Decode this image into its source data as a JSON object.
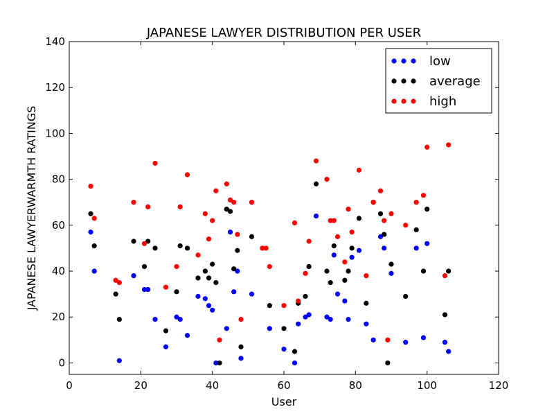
{
  "chart_data": {
    "type": "scatter",
    "title": "JAPANESE LAWYER DISTRIBUTION PER USER",
    "xlabel": "User",
    "ylabel": "JAPANESE LAWYERWARMTH RATINGS",
    "xlim": [
      0,
      120
    ],
    "ylim": [
      -5,
      140
    ],
    "xticks": [
      0,
      20,
      40,
      60,
      80,
      100,
      120
    ],
    "yticks": [
      0,
      20,
      40,
      60,
      80,
      100,
      120,
      140
    ],
    "grid": false,
    "legend_position": "top-right",
    "series": [
      {
        "name": "low",
        "color": "#0000ff",
        "points": [
          [
            6,
            57
          ],
          [
            7,
            40
          ],
          [
            14,
            1
          ],
          [
            18,
            38
          ],
          [
            21,
            32
          ],
          [
            22,
            32
          ],
          [
            24,
            19
          ],
          [
            27,
            7
          ],
          [
            30,
            20
          ],
          [
            31,
            19
          ],
          [
            33,
            12
          ],
          [
            36,
            29
          ],
          [
            38,
            28
          ],
          [
            39,
            25
          ],
          [
            40,
            23
          ],
          [
            41,
            0
          ],
          [
            44,
            15
          ],
          [
            45,
            57
          ],
          [
            46,
            31
          ],
          [
            47,
            40
          ],
          [
            48,
            2
          ],
          [
            51,
            30
          ],
          [
            56,
            15
          ],
          [
            60,
            6
          ],
          [
            63,
            0
          ],
          [
            64,
            17
          ],
          [
            66,
            20
          ],
          [
            67,
            21
          ],
          [
            69,
            64
          ],
          [
            72,
            20
          ],
          [
            73,
            19
          ],
          [
            74,
            47
          ],
          [
            75,
            30
          ],
          [
            77,
            27
          ],
          [
            78,
            19
          ],
          [
            79,
            46
          ],
          [
            81,
            49
          ],
          [
            83,
            17
          ],
          [
            85,
            10
          ],
          [
            87,
            55
          ],
          [
            88,
            50
          ],
          [
            90,
            39
          ],
          [
            94,
            9
          ],
          [
            97,
            50
          ],
          [
            99,
            11
          ],
          [
            100,
            52
          ],
          [
            105,
            9
          ],
          [
            106,
            5
          ]
        ]
      },
      {
        "name": "average",
        "color": "#000000",
        "points": [
          [
            6,
            65
          ],
          [
            7,
            51
          ],
          [
            13,
            30
          ],
          [
            14,
            19
          ],
          [
            18,
            53
          ],
          [
            21,
            42
          ],
          [
            22,
            53
          ],
          [
            24,
            50
          ],
          [
            27,
            14
          ],
          [
            30,
            31
          ],
          [
            31,
            51
          ],
          [
            33,
            50
          ],
          [
            36,
            37
          ],
          [
            38,
            40
          ],
          [
            39,
            37
          ],
          [
            40,
            43
          ],
          [
            41,
            35
          ],
          [
            42,
            0
          ],
          [
            44,
            67
          ],
          [
            45,
            66
          ],
          [
            46,
            41
          ],
          [
            47,
            49
          ],
          [
            48,
            7
          ],
          [
            51,
            55
          ],
          [
            54,
            50
          ],
          [
            56,
            25
          ],
          [
            60,
            15
          ],
          [
            63,
            5
          ],
          [
            64,
            26
          ],
          [
            66,
            29
          ],
          [
            67,
            42
          ],
          [
            69,
            78
          ],
          [
            72,
            40
          ],
          [
            73,
            35
          ],
          [
            74,
            51
          ],
          [
            77,
            36
          ],
          [
            78,
            40
          ],
          [
            79,
            50
          ],
          [
            81,
            63
          ],
          [
            83,
            26
          ],
          [
            85,
            70
          ],
          [
            87,
            65
          ],
          [
            88,
            56
          ],
          [
            89,
            0
          ],
          [
            90,
            43
          ],
          [
            94,
            29
          ],
          [
            97,
            58
          ],
          [
            99,
            40
          ],
          [
            100,
            67
          ],
          [
            105,
            21
          ],
          [
            106,
            40
          ]
        ]
      },
      {
        "name": "high",
        "color": "#ff0000",
        "points": [
          [
            6,
            77
          ],
          [
            7,
            63
          ],
          [
            13,
            36
          ],
          [
            14,
            35
          ],
          [
            18,
            70
          ],
          [
            21,
            52
          ],
          [
            22,
            68
          ],
          [
            24,
            87
          ],
          [
            27,
            33
          ],
          [
            30,
            42
          ],
          [
            31,
            68
          ],
          [
            33,
            82
          ],
          [
            36,
            47
          ],
          [
            38,
            65
          ],
          [
            39,
            54
          ],
          [
            40,
            62
          ],
          [
            41,
            75
          ],
          [
            42,
            10
          ],
          [
            44,
            78
          ],
          [
            45,
            71
          ],
          [
            46,
            70
          ],
          [
            47,
            56
          ],
          [
            48,
            19
          ],
          [
            51,
            70
          ],
          [
            54,
            50
          ],
          [
            55,
            50
          ],
          [
            56,
            42
          ],
          [
            60,
            25
          ],
          [
            63,
            61
          ],
          [
            64,
            27
          ],
          [
            66,
            39
          ],
          [
            67,
            53
          ],
          [
            69,
            88
          ],
          [
            72,
            80
          ],
          [
            73,
            62
          ],
          [
            74,
            62
          ],
          [
            75,
            55
          ],
          [
            77,
            44
          ],
          [
            78,
            67
          ],
          [
            79,
            57
          ],
          [
            81,
            84
          ],
          [
            83,
            38
          ],
          [
            85,
            70
          ],
          [
            87,
            75
          ],
          [
            88,
            62
          ],
          [
            89,
            10
          ],
          [
            90,
            65
          ],
          [
            94,
            60
          ],
          [
            97,
            70
          ],
          [
            99,
            73
          ],
          [
            100,
            94
          ],
          [
            105,
            38
          ],
          [
            106,
            95
          ]
        ]
      }
    ]
  }
}
